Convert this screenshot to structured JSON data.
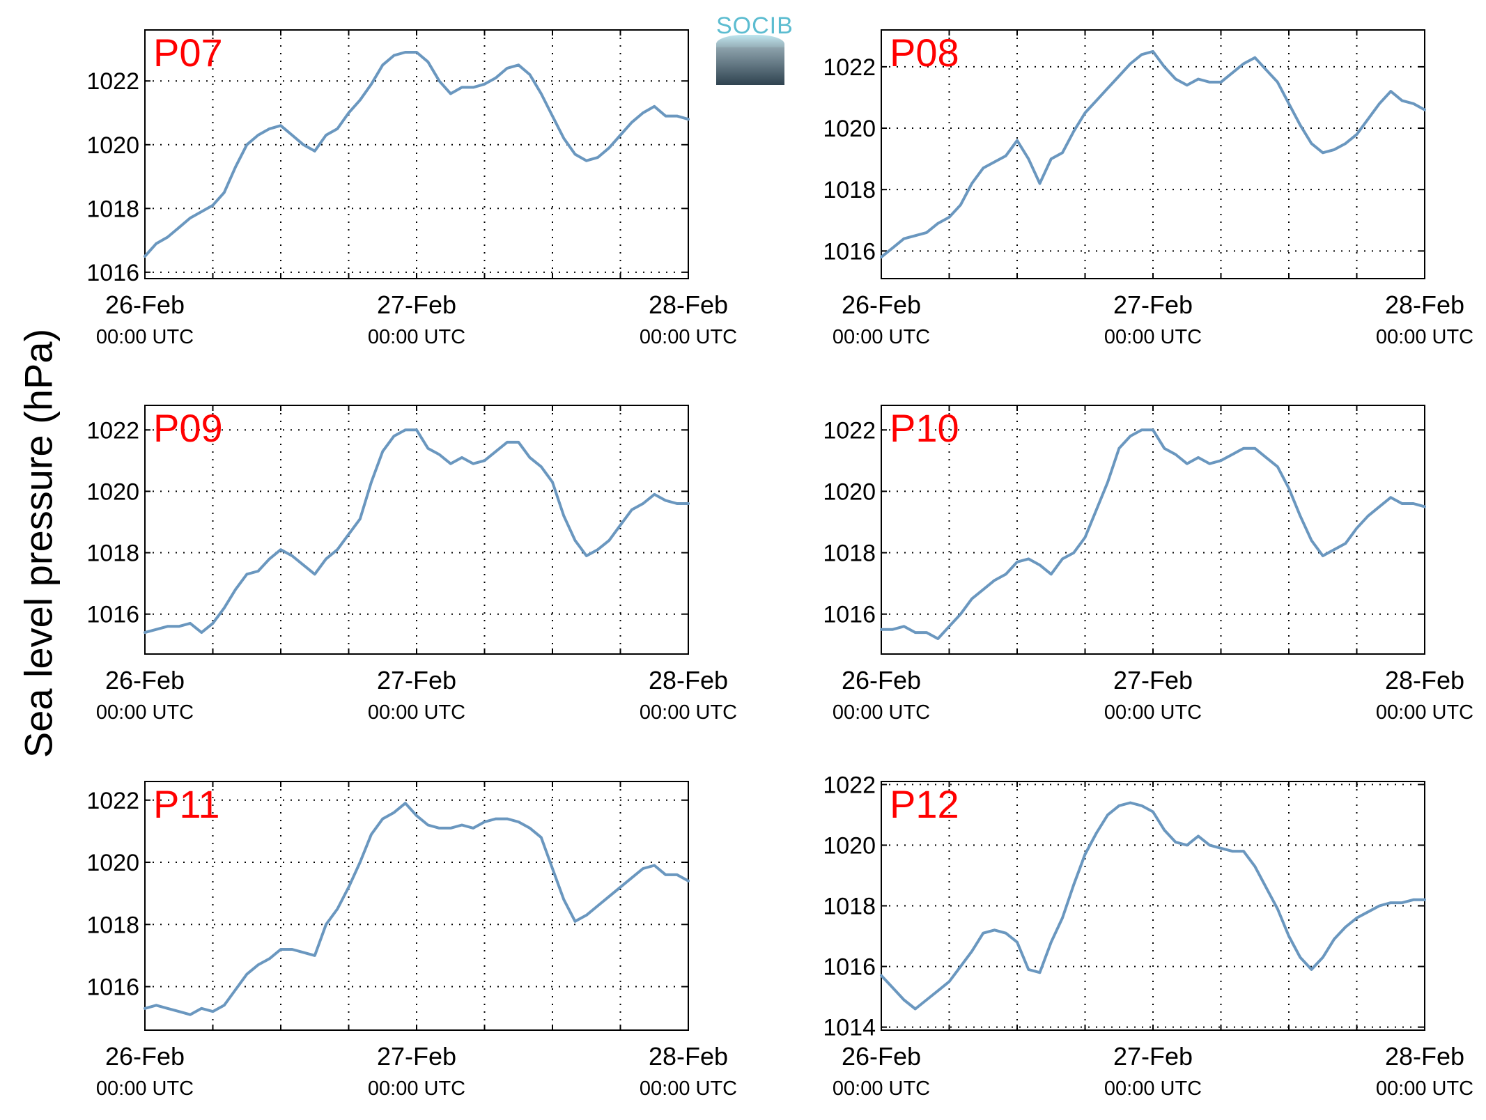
{
  "figure": {
    "ylabel": "Sea level pressure (hPa)",
    "logo_text": "SOCIB"
  },
  "colors": {
    "line": "#6a97bf",
    "panel_label": "#ff0000",
    "axes": "#000000",
    "grid": "#000000"
  },
  "chart_data": [
    {
      "type": "line",
      "label": "P07",
      "x_ticks": [
        {
          "date": "26-Feb",
          "time": "00:00 UTC"
        },
        {
          "date": "27-Feb",
          "time": "00:00 UTC"
        },
        {
          "date": "28-Feb",
          "time": "00:00 UTC"
        }
      ],
      "y_ticks": [
        1016,
        1018,
        1020,
        1022
      ],
      "xlim_hours": [
        0,
        48
      ],
      "ylim": [
        1015.8,
        1023.6
      ],
      "grid": true,
      "series": [
        {
          "x_hours": [
            0,
            1,
            2,
            3,
            4,
            5,
            6,
            7,
            8,
            9,
            10,
            11,
            12,
            13,
            14,
            15,
            16,
            17,
            18,
            19,
            20,
            21,
            22,
            23,
            24,
            25,
            26,
            27,
            28,
            29,
            30,
            31,
            32,
            33,
            34,
            35,
            36,
            37,
            38,
            39,
            40,
            41,
            42,
            43,
            44,
            45,
            46,
            47,
            48
          ],
          "y": [
            1016.5,
            1016.9,
            1017.1,
            1017.4,
            1017.7,
            1017.9,
            1018.1,
            1018.5,
            1019.3,
            1020.0,
            1020.3,
            1020.5,
            1020.6,
            1020.3,
            1020.0,
            1019.8,
            1020.3,
            1020.5,
            1021.0,
            1021.4,
            1021.9,
            1022.5,
            1022.8,
            1022.9,
            1022.9,
            1022.6,
            1022.0,
            1021.6,
            1021.8,
            1021.8,
            1021.9,
            1022.1,
            1022.4,
            1022.5,
            1022.2,
            1021.6,
            1020.9,
            1020.2,
            1019.7,
            1019.5,
            1019.6,
            1019.9,
            1020.3,
            1020.7,
            1021.0,
            1021.2,
            1020.9,
            1020.9,
            1020.8
          ]
        }
      ]
    },
    {
      "type": "line",
      "label": "P08",
      "x_ticks": [
        {
          "date": "26-Feb",
          "time": "00:00 UTC"
        },
        {
          "date": "27-Feb",
          "time": "00:00 UTC"
        },
        {
          "date": "28-Feb",
          "time": "00:00 UTC"
        }
      ],
      "y_ticks": [
        1016,
        1018,
        1020,
        1022
      ],
      "xlim_hours": [
        0,
        48
      ],
      "ylim": [
        1015.1,
        1023.2
      ],
      "grid": true,
      "series": [
        {
          "x_hours": [
            0,
            1,
            2,
            3,
            4,
            5,
            6,
            7,
            8,
            9,
            10,
            11,
            12,
            13,
            14,
            15,
            16,
            17,
            18,
            19,
            20,
            21,
            22,
            23,
            24,
            25,
            26,
            27,
            28,
            29,
            30,
            31,
            32,
            33,
            34,
            35,
            36,
            37,
            38,
            39,
            40,
            41,
            42,
            43,
            44,
            45,
            46,
            47,
            48
          ],
          "y": [
            1015.8,
            1016.1,
            1016.4,
            1016.5,
            1016.6,
            1016.9,
            1017.1,
            1017.5,
            1018.2,
            1018.7,
            1018.9,
            1019.1,
            1019.6,
            1019.0,
            1018.2,
            1019.0,
            1019.2,
            1019.9,
            1020.5,
            1020.9,
            1021.3,
            1021.7,
            1022.1,
            1022.4,
            1022.5,
            1022.0,
            1021.6,
            1021.4,
            1021.6,
            1021.5,
            1021.5,
            1021.8,
            1022.1,
            1022.3,
            1021.9,
            1021.5,
            1020.8,
            1020.1,
            1019.5,
            1019.2,
            1019.3,
            1019.5,
            1019.8,
            1020.3,
            1020.8,
            1021.2,
            1020.9,
            1020.8,
            1020.6
          ]
        }
      ]
    },
    {
      "type": "line",
      "label": "P09",
      "x_ticks": [
        {
          "date": "26-Feb",
          "time": "00:00 UTC"
        },
        {
          "date": "27-Feb",
          "time": "00:00 UTC"
        },
        {
          "date": "28-Feb",
          "time": "00:00 UTC"
        }
      ],
      "y_ticks": [
        1016,
        1018,
        1020,
        1022
      ],
      "xlim_hours": [
        0,
        48
      ],
      "ylim": [
        1014.7,
        1022.8
      ],
      "grid": true,
      "series": [
        {
          "x_hours": [
            0,
            1,
            2,
            3,
            4,
            5,
            6,
            7,
            8,
            9,
            10,
            11,
            12,
            13,
            14,
            15,
            16,
            17,
            18,
            19,
            20,
            21,
            22,
            23,
            24,
            25,
            26,
            27,
            28,
            29,
            30,
            31,
            32,
            33,
            34,
            35,
            36,
            37,
            38,
            39,
            40,
            41,
            42,
            43,
            44,
            45,
            46,
            47,
            48
          ],
          "y": [
            1015.4,
            1015.5,
            1015.6,
            1015.6,
            1015.7,
            1015.4,
            1015.7,
            1016.2,
            1016.8,
            1017.3,
            1017.4,
            1017.8,
            1018.1,
            1017.9,
            1017.6,
            1017.3,
            1017.8,
            1018.1,
            1018.6,
            1019.1,
            1020.3,
            1021.3,
            1021.8,
            1022.0,
            1022.0,
            1021.4,
            1021.2,
            1020.9,
            1021.1,
            1020.9,
            1021.0,
            1021.3,
            1021.6,
            1021.6,
            1021.1,
            1020.8,
            1020.3,
            1019.2,
            1018.4,
            1017.9,
            1018.1,
            1018.4,
            1018.9,
            1019.4,
            1019.6,
            1019.9,
            1019.7,
            1019.6,
            1019.6
          ]
        }
      ]
    },
    {
      "type": "line",
      "label": "P10",
      "x_ticks": [
        {
          "date": "26-Feb",
          "time": "00:00 UTC"
        },
        {
          "date": "27-Feb",
          "time": "00:00 UTC"
        },
        {
          "date": "28-Feb",
          "time": "00:00 UTC"
        }
      ],
      "y_ticks": [
        1016,
        1018,
        1020,
        1022
      ],
      "xlim_hours": [
        0,
        48
      ],
      "ylim": [
        1014.7,
        1022.8
      ],
      "grid": true,
      "series": [
        {
          "x_hours": [
            0,
            1,
            2,
            3,
            4,
            5,
            6,
            7,
            8,
            9,
            10,
            11,
            12,
            13,
            14,
            15,
            16,
            17,
            18,
            19,
            20,
            21,
            22,
            23,
            24,
            25,
            26,
            27,
            28,
            29,
            30,
            31,
            32,
            33,
            34,
            35,
            36,
            37,
            38,
            39,
            40,
            41,
            42,
            43,
            44,
            45,
            46,
            47,
            48
          ],
          "y": [
            1015.5,
            1015.5,
            1015.6,
            1015.4,
            1015.4,
            1015.2,
            1015.6,
            1016.0,
            1016.5,
            1016.8,
            1017.1,
            1017.3,
            1017.7,
            1017.8,
            1017.6,
            1017.3,
            1017.8,
            1018.0,
            1018.5,
            1019.4,
            1020.3,
            1021.4,
            1021.8,
            1022.0,
            1022.0,
            1021.4,
            1021.2,
            1020.9,
            1021.1,
            1020.9,
            1021.0,
            1021.2,
            1021.4,
            1021.4,
            1021.1,
            1020.8,
            1020.1,
            1019.2,
            1018.4,
            1017.9,
            1018.1,
            1018.3,
            1018.8,
            1019.2,
            1019.5,
            1019.8,
            1019.6,
            1019.6,
            1019.5
          ]
        }
      ]
    },
    {
      "type": "line",
      "label": "P11",
      "x_ticks": [
        {
          "date": "26-Feb",
          "time": "00:00 UTC"
        },
        {
          "date": "27-Feb",
          "time": "00:00 UTC"
        },
        {
          "date": "28-Feb",
          "time": "00:00 UTC"
        }
      ],
      "y_ticks": [
        1016,
        1018,
        1020,
        1022
      ],
      "xlim_hours": [
        0,
        48
      ],
      "ylim": [
        1014.6,
        1022.6
      ],
      "grid": true,
      "series": [
        {
          "x_hours": [
            0,
            1,
            2,
            3,
            4,
            5,
            6,
            7,
            8,
            9,
            10,
            11,
            12,
            13,
            14,
            15,
            16,
            17,
            18,
            19,
            20,
            21,
            22,
            23,
            24,
            25,
            26,
            27,
            28,
            29,
            30,
            31,
            32,
            33,
            34,
            35,
            36,
            37,
            38,
            39,
            40,
            41,
            42,
            43,
            44,
            45,
            46,
            47,
            48
          ],
          "y": [
            1015.3,
            1015.4,
            1015.3,
            1015.2,
            1015.1,
            1015.3,
            1015.2,
            1015.4,
            1015.9,
            1016.4,
            1016.7,
            1016.9,
            1017.2,
            1017.2,
            1017.1,
            1017.0,
            1018.0,
            1018.5,
            1019.2,
            1020.0,
            1020.9,
            1021.4,
            1021.6,
            1021.9,
            1021.5,
            1021.2,
            1021.1,
            1021.1,
            1021.2,
            1021.1,
            1021.3,
            1021.4,
            1021.4,
            1021.3,
            1021.1,
            1020.8,
            1019.8,
            1018.8,
            1018.1,
            1018.3,
            1018.6,
            1018.9,
            1019.2,
            1019.5,
            1019.8,
            1019.9,
            1019.6,
            1019.6,
            1019.4
          ]
        }
      ]
    },
    {
      "type": "line",
      "label": "P12",
      "x_ticks": [
        {
          "date": "26-Feb",
          "time": "00:00 UTC"
        },
        {
          "date": "27-Feb",
          "time": "00:00 UTC"
        },
        {
          "date": "28-Feb",
          "time": "00:00 UTC"
        }
      ],
      "y_ticks": [
        1014,
        1016,
        1018,
        1020,
        1022
      ],
      "xlim_hours": [
        0,
        48
      ],
      "ylim": [
        1013.9,
        1022.1
      ],
      "grid": true,
      "series": [
        {
          "x_hours": [
            0,
            1,
            2,
            3,
            4,
            5,
            6,
            7,
            8,
            9,
            10,
            11,
            12,
            13,
            14,
            15,
            16,
            17,
            18,
            19,
            20,
            21,
            22,
            23,
            24,
            25,
            26,
            27,
            28,
            29,
            30,
            31,
            32,
            33,
            34,
            35,
            36,
            37,
            38,
            39,
            40,
            41,
            42,
            43,
            44,
            45,
            46,
            47,
            48
          ],
          "y": [
            1015.7,
            1015.3,
            1014.9,
            1014.6,
            1014.9,
            1015.2,
            1015.5,
            1016.0,
            1016.5,
            1017.1,
            1017.2,
            1017.1,
            1016.8,
            1015.9,
            1015.8,
            1016.8,
            1017.6,
            1018.7,
            1019.7,
            1020.4,
            1021.0,
            1021.3,
            1021.4,
            1021.3,
            1021.1,
            1020.5,
            1020.1,
            1020.0,
            1020.3,
            1020.0,
            1019.9,
            1019.8,
            1019.8,
            1019.3,
            1018.6,
            1017.9,
            1017.0,
            1016.3,
            1015.9,
            1016.3,
            1016.9,
            1017.3,
            1017.6,
            1017.8,
            1018.0,
            1018.1,
            1018.1,
            1018.2,
            1018.2
          ]
        }
      ]
    }
  ]
}
